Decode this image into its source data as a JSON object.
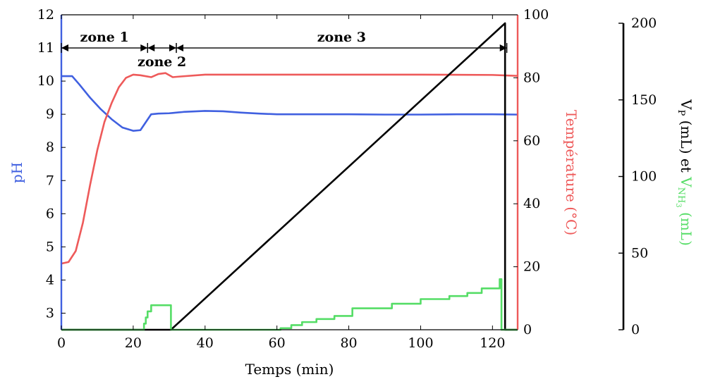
{
  "chart_data": {
    "type": "line",
    "x_axis": {
      "label": "Temps (min)",
      "range": [
        0,
        127
      ],
      "ticks": [
        "0",
        "20",
        "40",
        "60",
        "80",
        "100",
        "120"
      ]
    },
    "y_left": {
      "label": "pH",
      "color": "#4060e0",
      "range": [
        2.5,
        12
      ],
      "ticks": [
        "3",
        "4",
        "5",
        "6",
        "7",
        "8",
        "9",
        "10",
        "11",
        "12"
      ]
    },
    "y_temperature": {
      "label": "Température (°C)",
      "color": "#ee5a5a",
      "range": [
        0,
        100
      ],
      "ticks": [
        "0",
        "20",
        "40",
        "60",
        "80",
        "100"
      ]
    },
    "y_volume": {
      "label_vp": "V",
      "label_vp_sub": "P",
      "label_et": " (mL) et ",
      "label_vnh3": "V",
      "label_vnh3_sub": "NH",
      "label_vnh3_subsub": "3",
      "label_unit": " (mL)",
      "color_vp": "#000000",
      "color_vnh3": "#55dd66",
      "range": [
        0,
        200
      ],
      "ticks": [
        "0",
        "50",
        "100",
        "150",
        "200"
      ]
    },
    "zones": [
      {
        "label": "zone 1",
        "x_start": 0,
        "x_end": 24
      },
      {
        "label": "zone 2",
        "x_start": 24,
        "x_end": 32
      },
      {
        "label": "zone 3",
        "x_start": 32,
        "x_end": 124
      }
    ],
    "series": [
      {
        "color": "#4060e0",
        "axis": "ph",
        "x": [
          0,
          3,
          5,
          8,
          11,
          14,
          17,
          20,
          22,
          22.5,
          25,
          27,
          30,
          31,
          34,
          40,
          45,
          50,
          55,
          60,
          70,
          80,
          90,
          100,
          110,
          120,
          127
        ],
        "y": [
          10.15,
          10.15,
          9.9,
          9.5,
          9.15,
          8.85,
          8.6,
          8.5,
          8.52,
          8.6,
          9.0,
          9.02,
          9.03,
          9.04,
          9.07,
          9.1,
          9.09,
          9.05,
          9.02,
          9.0,
          9.0,
          9.0,
          8.99,
          8.99,
          9.0,
          9.0,
          8.99
        ]
      },
      {
        "color": "#ee5a5a",
        "axis": "temperature",
        "x": [
          0,
          2,
          4,
          6,
          8,
          10,
          12,
          14,
          16,
          18,
          20,
          22,
          25,
          27,
          29,
          31,
          33,
          40,
          50,
          60,
          80,
          100,
          120,
          127
        ],
        "y": [
          21,
          21.5,
          25,
          34,
          46,
          57,
          66,
          72,
          77,
          80,
          81,
          80.8,
          80.2,
          81.2,
          81.5,
          80.2,
          80.4,
          81,
          81,
          81,
          81,
          81,
          80.9,
          80.6
        ]
      },
      {
        "color": "#000000",
        "axis": "volume",
        "x": [
          0,
          30.5,
          123.5,
          123.5,
          127
        ],
        "y": [
          0,
          0,
          200,
          0,
          0
        ]
      },
      {
        "color": "#55dd66",
        "axis": "volume",
        "x": [
          0,
          22.5,
          23,
          23,
          23.5,
          23.5,
          24,
          24,
          25,
          25,
          30.5,
          30.5,
          61,
          61,
          64,
          64,
          67,
          67,
          71,
          71,
          76,
          76,
          81,
          81,
          92,
          92,
          100,
          100,
          108,
          108,
          113,
          113,
          117,
          117,
          122,
          122,
          122.5,
          122.5,
          127
        ],
        "y": [
          0,
          0,
          0,
          4,
          4,
          8,
          8,
          12,
          12,
          16,
          16,
          0,
          0,
          1,
          1,
          3,
          3,
          5,
          5,
          7,
          7,
          9,
          9,
          14,
          14,
          17,
          17,
          20,
          20,
          22,
          22,
          24,
          24,
          27,
          27,
          33,
          33,
          0,
          0
        ]
      }
    ]
  }
}
